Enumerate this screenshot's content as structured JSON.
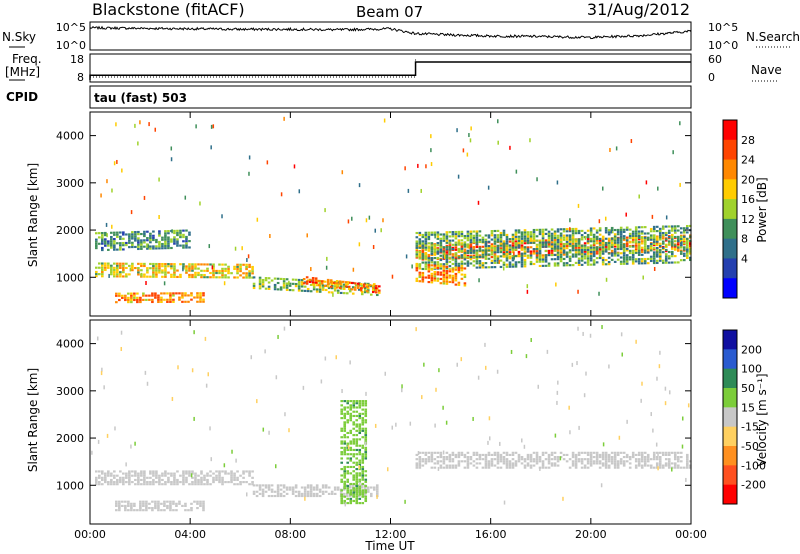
{
  "header": {
    "station": "Blackstone (fitACF)",
    "beam": "Beam 07",
    "date": "31/Aug/2012"
  },
  "noise_panel": {
    "left_label": "N.Sky",
    "right_label": "N.Search",
    "ticks": [
      "10^5",
      "10^0"
    ]
  },
  "freq_panel": {
    "left_label_line1": "Freq.",
    "left_label_line2": "[MHz]",
    "right_label": "Nave",
    "left_ticks": [
      "18",
      "8"
    ],
    "right_ticks": [
      "60",
      "0"
    ]
  },
  "cpid_panel": {
    "label": "CPID",
    "program": "tau (fast) 503"
  },
  "power_panel": {
    "ylabel": "Slant Range [km]",
    "colorbar_label": "Power [dB]",
    "colorbar_ticks": [
      "28",
      "24",
      "20",
      "16",
      "12",
      "8",
      "4"
    ],
    "colorbar_colors": [
      "#ff0000",
      "#ff4400",
      "#ff8800",
      "#ffcc00",
      "#a0d22c",
      "#3f8f5a",
      "#2f6f8a",
      "#2440b0",
      "#0000ff"
    ]
  },
  "velocity_panel": {
    "ylabel": "Slant Range [km]",
    "colorbar_label": "Velocity [m s⁻¹]",
    "colorbar_ticks": [
      "200",
      "100",
      "50",
      "15",
      "-15",
      "-50",
      "-100",
      "-200"
    ],
    "colorbar_colors": [
      "#1010a0",
      "#2a5bd0",
      "#2e8b57",
      "#7ccd3a",
      "#c8c8c8",
      "#ffd060",
      "#ff9020",
      "#ff5020",
      "#ff0000"
    ]
  },
  "xaxis": {
    "label": "Time UT",
    "ticks": [
      "00:00",
      "04:00",
      "08:00",
      "12:00",
      "16:00",
      "20:00",
      "00:00"
    ]
  },
  "chart_data": [
    {
      "type": "line",
      "name": "noise",
      "x_hours": [
        0,
        2,
        4,
        6,
        8,
        10,
        12,
        13,
        14,
        16,
        18,
        20,
        22,
        24
      ],
      "y_log10": [
        4.2,
        4.1,
        4.0,
        3.9,
        3.9,
        3.8,
        4.0,
        3.0,
        2.8,
        2.5,
        2.4,
        2.2,
        2.6,
        3.5
      ]
    },
    {
      "type": "line",
      "name": "frequency",
      "x_hours": [
        0,
        1,
        13.0,
        13.01,
        24
      ],
      "y_mhz": [
        8,
        10,
        10,
        15.5,
        15.5
      ],
      "ylim": [
        8,
        18
      ]
    },
    {
      "type": "heatmap",
      "name": "power",
      "xlim_hours": [
        0,
        24
      ],
      "ylim_km": [
        180,
        4500
      ],
      "colorbar_range_db": [
        0,
        30
      ],
      "bands": [
        {
          "t": [
            0.2,
            6.5
          ],
          "r0": 1000,
          "r1": 1300,
          "db": 18,
          "dr": -30
        },
        {
          "t": [
            1.0,
            4.5
          ],
          "r0": 450,
          "r1": 650,
          "db": 22,
          "dr": 10
        },
        {
          "t": [
            0.2,
            4.0
          ],
          "r0": 1550,
          "r1": 1950,
          "db": 10,
          "dr": 60
        },
        {
          "t": [
            6.5,
            11.5
          ],
          "r0": 750,
          "r1": 1000,
          "db": 14,
          "dr": -150
        },
        {
          "t": [
            8.5,
            11.5
          ],
          "r0": 850,
          "r1": 1000,
          "db": 24,
          "dr": -200
        },
        {
          "t": [
            13.0,
            24.0
          ],
          "r0": 1350,
          "r1": 1700,
          "db": 24,
          "dr": 200
        },
        {
          "t": [
            13.0,
            24.0
          ],
          "r0": 1150,
          "r1": 1950,
          "db": 12,
          "dr": 150
        },
        {
          "t": [
            13.0,
            15.0
          ],
          "r0": 900,
          "r1": 1300,
          "db": 22,
          "dr": -100
        }
      ]
    },
    {
      "type": "heatmap",
      "name": "velocity",
      "xlim_hours": [
        0,
        24
      ],
      "ylim_km": [
        180,
        4500
      ],
      "colorbar_range_ms": [
        -250,
        250
      ],
      "bands": [
        {
          "t": [
            0.2,
            6.5
          ],
          "r0": 1000,
          "r1": 1300,
          "v": 0
        },
        {
          "t": [
            1.0,
            4.5
          ],
          "r0": 450,
          "r1": 650,
          "v": 0
        },
        {
          "t": [
            6.5,
            11.5
          ],
          "r0": 750,
          "r1": 1000,
          "v": 0
        },
        {
          "t": [
            13.0,
            24.0
          ],
          "r0": 1350,
          "r1": 1700,
          "v": 0
        },
        {
          "t": [
            10.0,
            11.0
          ],
          "r0": 600,
          "r1": 2800,
          "v": 70
        }
      ]
    }
  ]
}
